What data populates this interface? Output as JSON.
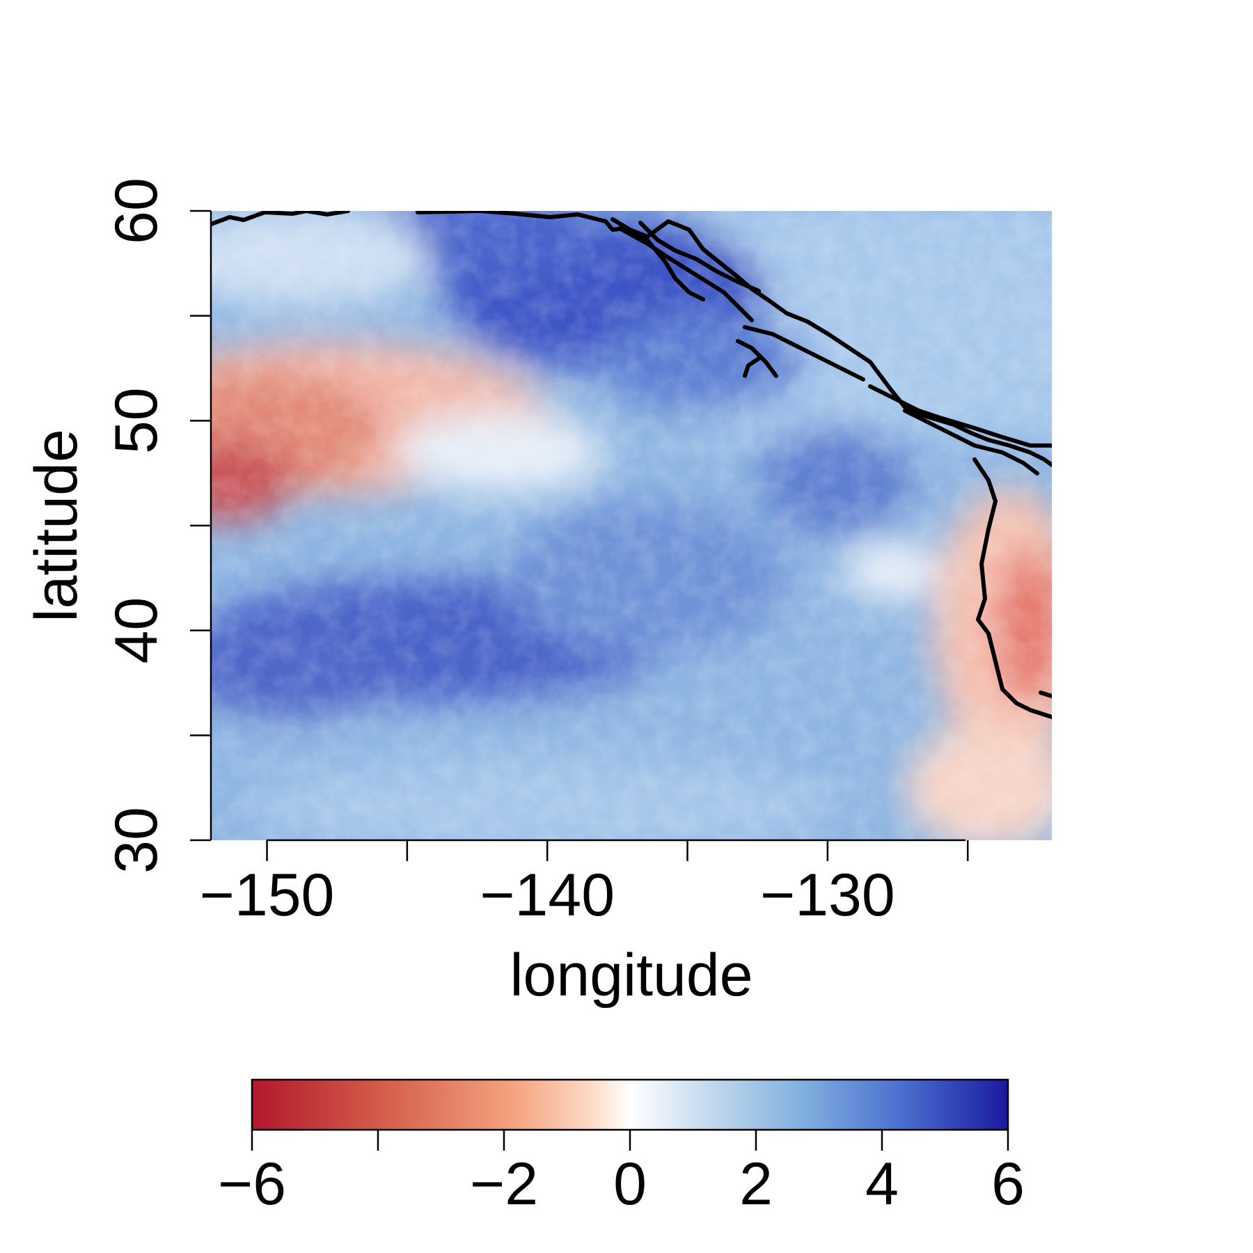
{
  "chart_data": {
    "type": "heatmap",
    "title": "",
    "xlabel": "longitude",
    "ylabel": "latitude",
    "xlim": [
      -152,
      -122
    ],
    "ylim": [
      30,
      60
    ],
    "xticks": [
      -150,
      -145,
      -140,
      -135,
      -130,
      -125
    ],
    "xtick_labels": [
      "−150",
      "",
      "−140",
      "",
      "−130",
      ""
    ],
    "yticks": [
      30,
      35,
      40,
      45,
      50,
      55,
      60
    ],
    "ytick_labels": [
      "30",
      "",
      "40",
      "",
      "50",
      "",
      "60"
    ],
    "colorbar": {
      "range": [
        -6,
        6
      ],
      "ticks": [
        -6,
        -4,
        -2,
        0,
        2,
        4,
        6
      ],
      "tick_labels": [
        "−6",
        "",
        "−2",
        "0",
        "2",
        "4",
        "6"
      ],
      "low_color": "#b2182b",
      "mid_color": "#ffffff",
      "high_color": "#1a1aa0"
    },
    "field_summary": [
      {
        "region": "NW band centred near 45-52N, 152-140W",
        "value_range": [
          -5,
          -1
        ]
      },
      {
        "region": "Gulf of Alaska, 53-59N, 145-133W",
        "value_range": [
          3,
          5
        ]
      },
      {
        "region": "Central band 35-43N, 150-135W",
        "value_range": [
          3,
          4.5
        ]
      },
      {
        "region": "Coastal strip off California, 30-45N, 126-122W",
        "value_range": [
          -3,
          -1
        ]
      },
      {
        "region": "South-east open ocean, 30-35N",
        "value_range": [
          1,
          2.5
        ]
      }
    ],
    "coastline": "black",
    "grid": false
  }
}
